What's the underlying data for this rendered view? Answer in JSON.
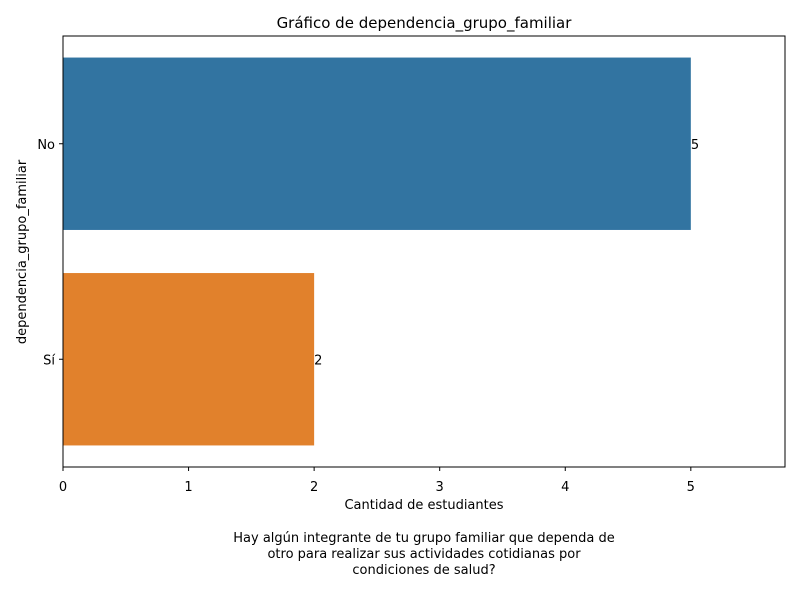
{
  "chart_data": {
    "type": "bar",
    "orientation": "horizontal",
    "title": "Gráfico de dependencia_grupo_familiar",
    "xlabel": "Cantidad de estudiantes",
    "ylabel": "dependencia_grupo_familiar",
    "categories": [
      "No",
      "Sí"
    ],
    "values": [
      5,
      2
    ],
    "data_labels": [
      "5",
      "2"
    ],
    "colors": [
      "#3274a1",
      "#e1812c"
    ],
    "xlim": [
      0,
      5.75
    ],
    "xticks": [
      0,
      1,
      2,
      3,
      4,
      5
    ],
    "grid": false,
    "legend": "none"
  },
  "caption": {
    "lines": [
      "Hay algún integrante de tu grupo familiar que dependa de",
      "otro para realizar sus actividades cotidianas por",
      "condiciones de salud?"
    ]
  }
}
